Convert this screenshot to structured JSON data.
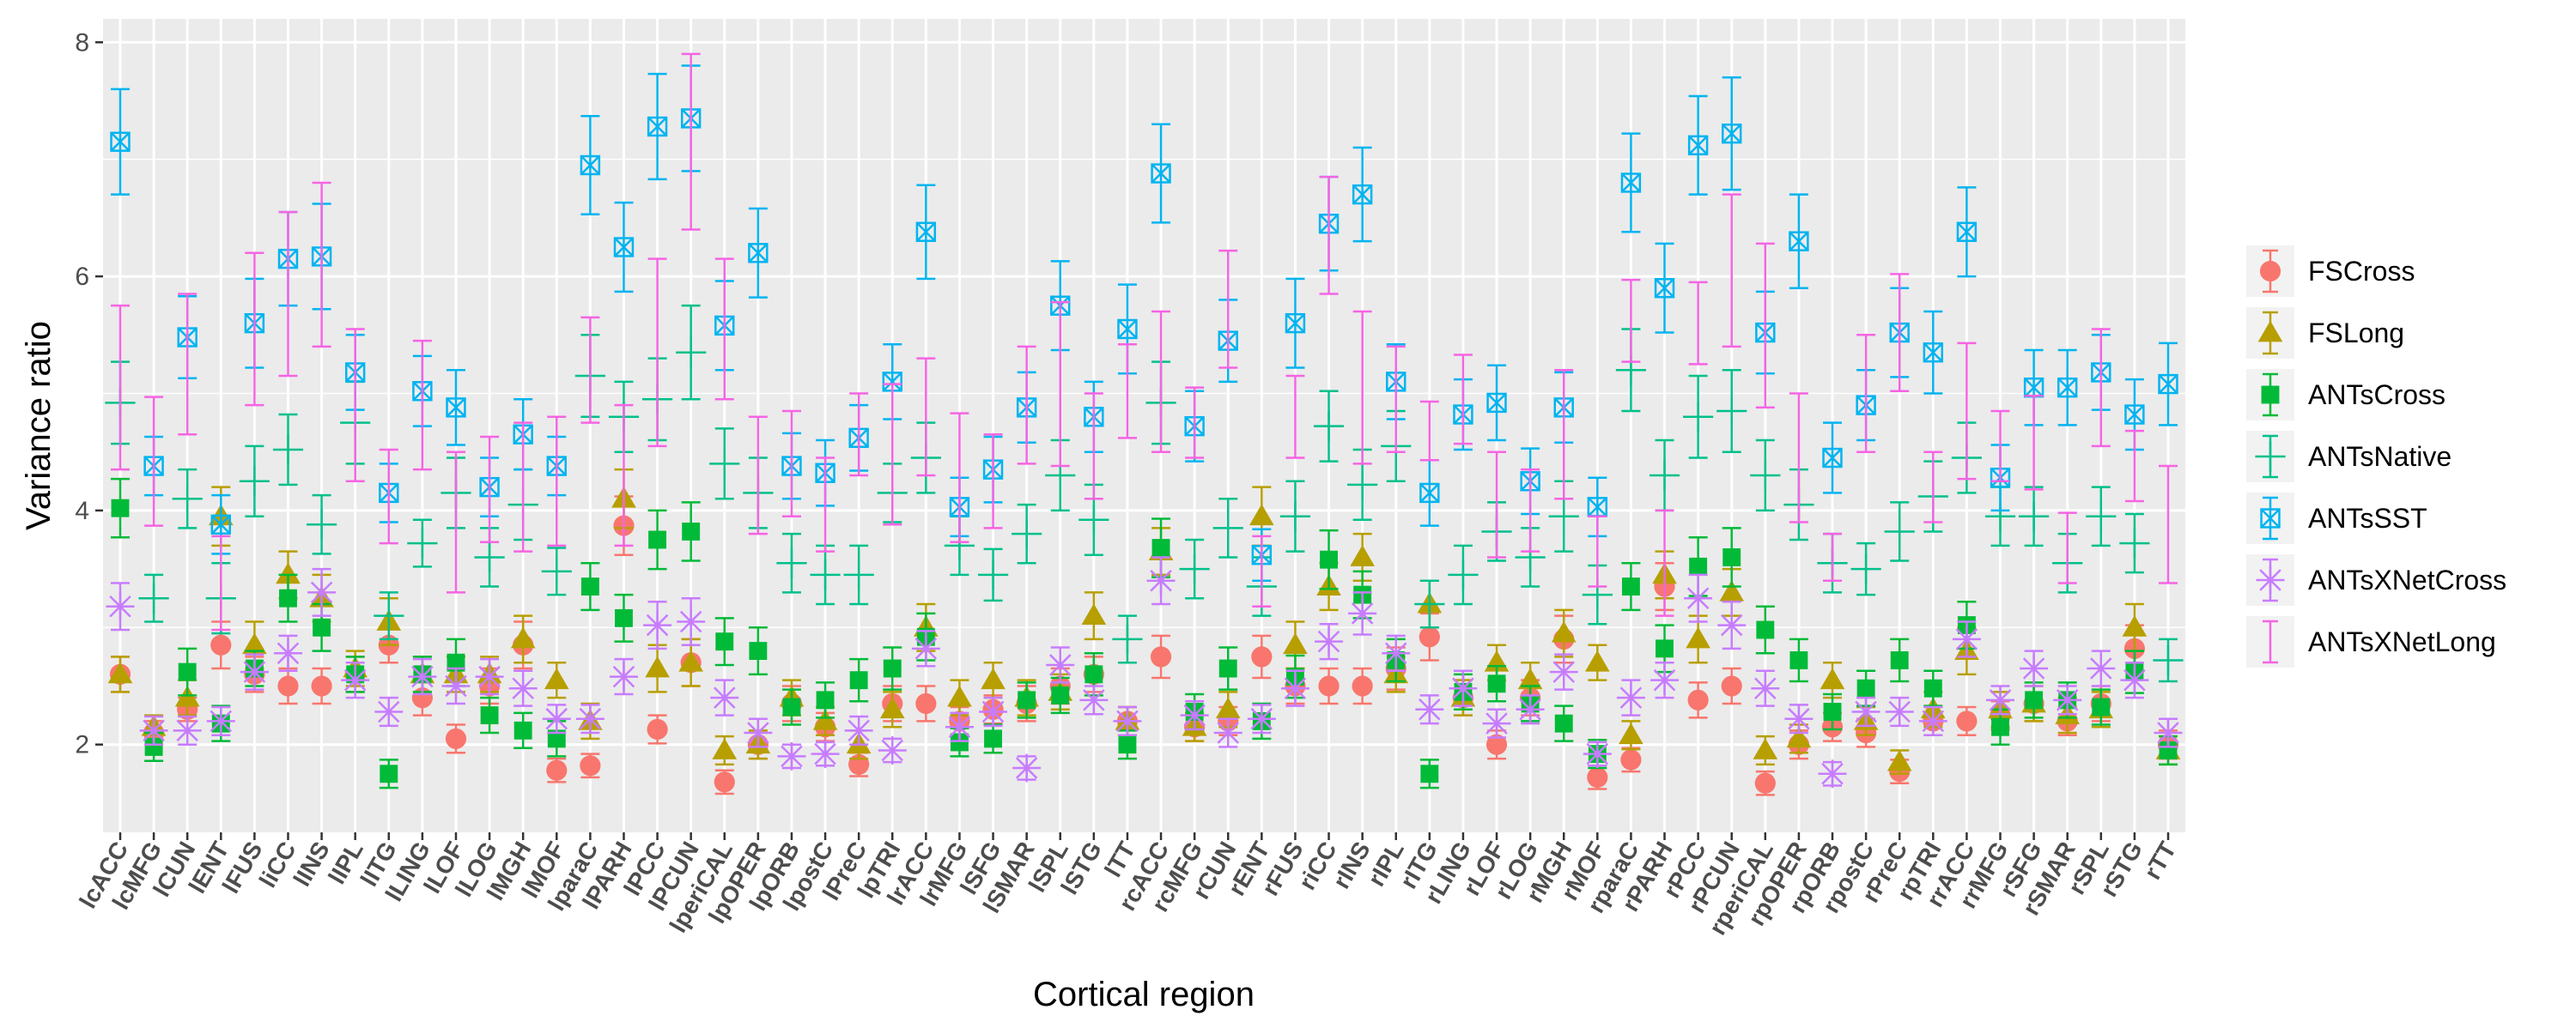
{
  "chart_data": {
    "type": "scatter",
    "xlabel": "Cortical region",
    "ylabel": "Variance ratio",
    "ylim": [
      1.25,
      8.2
    ],
    "yticks": [
      2,
      4,
      6,
      8
    ],
    "grid": true,
    "legend_position": "right",
    "categories": [
      "lcACC",
      "lcMFG",
      "lCUN",
      "lENT",
      "lFUS",
      "liCC",
      "lINS",
      "lIPL",
      "lITG",
      "lLING",
      "lLOF",
      "lLOG",
      "lMGH",
      "lMOF",
      "lparaC",
      "lPARH",
      "lPCC",
      "lPCUN",
      "lperiCAL",
      "lpOPER",
      "lpORB",
      "lpostC",
      "lPreC",
      "lpTRI",
      "lrACC",
      "lrMFG",
      "lSFG",
      "lSMAR",
      "lSPL",
      "lSTG",
      "lTT",
      "rcACC",
      "rcMFG",
      "rCUN",
      "rENT",
      "rFUS",
      "riCC",
      "rINS",
      "rIPL",
      "rITG",
      "rLING",
      "rLOF",
      "rLOG",
      "rMGH",
      "rMOF",
      "rparaC",
      "rPARH",
      "rPCC",
      "rPCUN",
      "rperiCAL",
      "rpOPER",
      "rpORB",
      "rpostC",
      "rPreC",
      "rpTRI",
      "rrACC",
      "rrMFG",
      "rSFG",
      "rSMAR",
      "rSPL",
      "rSTG",
      "rTT"
    ],
    "series": [
      {
        "name": "FSCross",
        "color": "#F8766D",
        "marker": "circle",
        "values": [
          2.6,
          2.1,
          2.3,
          2.85,
          2.6,
          2.5,
          2.5,
          2.6,
          2.85,
          2.4,
          2.05,
          2.5,
          2.85,
          1.78,
          1.82,
          3.87,
          2.13,
          2.7,
          1.68,
          2.0,
          2.35,
          2.15,
          1.83,
          2.35,
          2.35,
          2.2,
          2.3,
          2.35,
          2.5,
          2.6,
          2.2,
          2.75,
          2.15,
          2.2,
          2.75,
          2.5,
          2.5,
          2.5,
          2.65,
          2.92,
          2.4,
          2.0,
          2.4,
          2.9,
          1.72,
          1.87,
          3.35,
          2.38,
          2.5,
          1.67,
          2.0,
          2.15,
          2.1,
          1.77,
          2.2,
          2.2,
          2.25,
          2.35,
          2.2,
          2.35,
          2.82,
          2.0
        ],
        "errors": [
          0.15,
          0.1,
          0.1,
          0.2,
          0.15,
          0.15,
          0.15,
          0.15,
          0.15,
          0.15,
          0.12,
          0.15,
          0.2,
          0.1,
          0.1,
          0.25,
          0.12,
          0.2,
          0.1,
          0.12,
          0.15,
          0.12,
          0.1,
          0.15,
          0.15,
          0.12,
          0.12,
          0.15,
          0.15,
          0.15,
          0.12,
          0.18,
          0.12,
          0.12,
          0.18,
          0.15,
          0.15,
          0.15,
          0.18,
          0.2,
          0.15,
          0.12,
          0.15,
          0.2,
          0.1,
          0.1,
          0.2,
          0.15,
          0.15,
          0.1,
          0.12,
          0.12,
          0.12,
          0.1,
          0.12,
          0.12,
          0.12,
          0.15,
          0.12,
          0.15,
          0.2,
          0.12
        ]
      },
      {
        "name": "FSLong",
        "color": "#B79F00",
        "marker": "triangle",
        "values": [
          2.6,
          2.15,
          2.4,
          3.95,
          2.85,
          3.45,
          3.25,
          2.65,
          3.05,
          2.6,
          2.6,
          2.6,
          2.9,
          2.55,
          2.2,
          4.1,
          2.65,
          2.7,
          1.95,
          2.0,
          2.4,
          2.2,
          2.0,
          2.3,
          3.0,
          2.4,
          2.55,
          2.4,
          2.45,
          3.1,
          2.2,
          3.65,
          2.15,
          2.3,
          3.95,
          2.85,
          3.35,
          3.6,
          2.6,
          3.2,
          2.4,
          2.7,
          2.55,
          2.95,
          2.7,
          2.08,
          3.45,
          2.9,
          3.3,
          1.95,
          2.05,
          2.55,
          2.2,
          1.85,
          2.3,
          2.8,
          2.3,
          2.35,
          2.25,
          2.3,
          3.0,
          1.95
        ],
        "errors": [
          0.15,
          0.1,
          0.15,
          0.25,
          0.2,
          0.2,
          0.2,
          0.15,
          0.2,
          0.15,
          0.15,
          0.15,
          0.2,
          0.15,
          0.15,
          0.25,
          0.2,
          0.2,
          0.12,
          0.12,
          0.15,
          0.12,
          0.12,
          0.15,
          0.2,
          0.15,
          0.15,
          0.15,
          0.15,
          0.2,
          0.12,
          0.2,
          0.12,
          0.15,
          0.25,
          0.2,
          0.2,
          0.2,
          0.15,
          0.2,
          0.15,
          0.15,
          0.15,
          0.2,
          0.15,
          0.12,
          0.2,
          0.2,
          0.2,
          0.12,
          0.12,
          0.15,
          0.12,
          0.1,
          0.15,
          0.2,
          0.15,
          0.15,
          0.15,
          0.15,
          0.2,
          0.12
        ]
      },
      {
        "name": "ANTsCross",
        "color": "#00BA38",
        "marker": "square",
        "values": [
          4.02,
          1.98,
          2.62,
          2.18,
          2.65,
          3.25,
          3.0,
          2.6,
          1.75,
          2.6,
          2.7,
          2.25,
          2.12,
          2.05,
          3.35,
          3.08,
          3.75,
          3.82,
          2.88,
          2.8,
          2.32,
          2.38,
          2.55,
          2.65,
          2.92,
          2.02,
          2.05,
          2.38,
          2.42,
          2.6,
          2.0,
          3.68,
          2.28,
          2.65,
          2.2,
          2.58,
          3.58,
          3.28,
          2.72,
          1.75,
          2.45,
          2.52,
          2.35,
          2.18,
          1.92,
          3.35,
          2.82,
          3.52,
          3.6,
          2.98,
          2.72,
          2.28,
          2.48,
          2.72,
          2.48,
          3.02,
          2.15,
          2.38,
          2.38,
          2.32,
          2.62,
          1.95
        ],
        "errors": [
          0.25,
          0.12,
          0.2,
          0.15,
          0.15,
          0.2,
          0.2,
          0.15,
          0.12,
          0.15,
          0.2,
          0.15,
          0.15,
          0.15,
          0.2,
          0.2,
          0.25,
          0.25,
          0.2,
          0.2,
          0.15,
          0.15,
          0.18,
          0.18,
          0.2,
          0.12,
          0.12,
          0.15,
          0.15,
          0.18,
          0.12,
          0.25,
          0.15,
          0.18,
          0.15,
          0.18,
          0.25,
          0.2,
          0.18,
          0.12,
          0.15,
          0.15,
          0.15,
          0.15,
          0.12,
          0.2,
          0.2,
          0.25,
          0.25,
          0.2,
          0.18,
          0.15,
          0.15,
          0.18,
          0.15,
          0.2,
          0.15,
          0.15,
          0.15,
          0.15,
          0.18,
          0.12
        ]
      },
      {
        "name": "ANTsNative",
        "color": "#00C08B",
        "marker": "plus",
        "values": [
          4.92,
          3.25,
          4.1,
          3.25,
          4.25,
          4.52,
          3.88,
          4.75,
          3.1,
          3.72,
          4.15,
          3.6,
          4.05,
          3.48,
          5.15,
          4.8,
          4.95,
          5.35,
          4.4,
          4.15,
          3.55,
          3.45,
          3.45,
          4.15,
          4.45,
          3.7,
          3.45,
          3.8,
          4.3,
          3.92,
          2.9,
          4.92,
          3.5,
          3.85,
          3.35,
          3.95,
          4.72,
          4.22,
          4.55,
          3.2,
          3.45,
          3.82,
          3.6,
          3.95,
          3.28,
          5.2,
          4.3,
          4.8,
          4.85,
          4.3,
          4.05,
          3.55,
          3.5,
          3.82,
          4.12,
          4.45,
          3.95,
          3.95,
          3.55,
          3.95,
          3.72,
          2.72
        ],
        "errors": [
          0.35,
          0.2,
          0.25,
          0.3,
          0.3,
          0.3,
          0.25,
          0.35,
          0.2,
          0.2,
          0.3,
          0.25,
          0.3,
          0.2,
          0.35,
          0.3,
          0.35,
          0.4,
          0.3,
          0.3,
          0.25,
          0.25,
          0.25,
          0.25,
          0.3,
          0.25,
          0.22,
          0.25,
          0.3,
          0.3,
          0.2,
          0.35,
          0.25,
          0.25,
          0.25,
          0.3,
          0.3,
          0.3,
          0.3,
          0.2,
          0.25,
          0.25,
          0.25,
          0.3,
          0.25,
          0.35,
          0.3,
          0.35,
          0.35,
          0.3,
          0.3,
          0.25,
          0.22,
          0.25,
          0.3,
          0.3,
          0.25,
          0.25,
          0.25,
          0.25,
          0.25,
          0.18
        ]
      },
      {
        "name": "ANTsSST",
        "color": "#00B4F0",
        "marker": "boxcross",
        "values": [
          7.15,
          4.38,
          5.48,
          3.88,
          5.6,
          6.15,
          6.17,
          5.18,
          4.15,
          5.02,
          4.88,
          4.2,
          4.65,
          4.38,
          6.95,
          6.25,
          7.28,
          7.35,
          5.58,
          6.2,
          4.38,
          4.32,
          4.62,
          5.1,
          6.38,
          4.03,
          4.35,
          4.88,
          5.75,
          4.8,
          5.55,
          6.88,
          4.72,
          5.45,
          3.62,
          5.6,
          6.45,
          6.7,
          5.1,
          4.15,
          4.82,
          4.92,
          4.25,
          4.88,
          4.03,
          6.8,
          5.9,
          7.12,
          7.22,
          5.52,
          6.3,
          4.45,
          4.9,
          5.52,
          5.35,
          6.38,
          4.28,
          5.05,
          5.05,
          5.18,
          4.82,
          5.08
        ],
        "errors": [
          0.45,
          0.25,
          0.35,
          0.25,
          0.38,
          0.4,
          0.45,
          0.32,
          0.25,
          0.3,
          0.32,
          0.25,
          0.3,
          0.25,
          0.42,
          0.38,
          0.45,
          0.45,
          0.38,
          0.38,
          0.28,
          0.28,
          0.28,
          0.32,
          0.4,
          0.25,
          0.28,
          0.3,
          0.38,
          0.3,
          0.38,
          0.42,
          0.3,
          0.35,
          0.22,
          0.38,
          0.4,
          0.4,
          0.32,
          0.28,
          0.3,
          0.32,
          0.28,
          0.3,
          0.25,
          0.42,
          0.38,
          0.42,
          0.48,
          0.35,
          0.4,
          0.3,
          0.3,
          0.38,
          0.35,
          0.38,
          0.28,
          0.32,
          0.32,
          0.32,
          0.3,
          0.35
        ]
      },
      {
        "name": "ANTsXNetCross",
        "color": "#C77CFF",
        "marker": "star",
        "values": [
          3.18,
          2.12,
          2.12,
          2.2,
          2.62,
          2.78,
          3.3,
          2.55,
          2.28,
          2.58,
          2.5,
          2.58,
          2.48,
          2.22,
          2.22,
          2.58,
          3.02,
          3.05,
          2.4,
          2.1,
          1.9,
          1.92,
          2.12,
          1.95,
          2.82,
          2.15,
          2.28,
          1.8,
          2.68,
          2.38,
          2.2,
          3.4,
          2.25,
          2.1,
          2.22,
          2.48,
          2.88,
          3.12,
          2.78,
          2.3,
          2.48,
          2.18,
          2.3,
          2.62,
          1.92,
          2.4,
          2.55,
          3.25,
          3.02,
          2.48,
          2.22,
          1.75,
          2.28,
          2.28,
          2.2,
          2.9,
          2.38,
          2.65,
          2.38,
          2.65,
          2.55,
          2.1
        ],
        "errors": [
          0.2,
          0.12,
          0.12,
          0.12,
          0.15,
          0.15,
          0.2,
          0.15,
          0.12,
          0.15,
          0.15,
          0.15,
          0.15,
          0.12,
          0.12,
          0.15,
          0.2,
          0.2,
          0.15,
          0.12,
          0.1,
          0.1,
          0.12,
          0.1,
          0.15,
          0.12,
          0.12,
          0.1,
          0.15,
          0.12,
          0.12,
          0.2,
          0.12,
          0.12,
          0.12,
          0.15,
          0.15,
          0.18,
          0.15,
          0.12,
          0.15,
          0.12,
          0.12,
          0.15,
          0.1,
          0.15,
          0.15,
          0.2,
          0.2,
          0.15,
          0.12,
          0.1,
          0.12,
          0.12,
          0.12,
          0.15,
          0.12,
          0.15,
          0.12,
          0.15,
          0.15,
          0.12
        ]
      },
      {
        "name": "ANTsXNetLong",
        "color": "#F564E3",
        "marker": "dash",
        "values": [
          5.05,
          4.42,
          5.25,
          3.38,
          5.55,
          5.85,
          6.1,
          4.9,
          4.12,
          4.9,
          3.9,
          4.18,
          4.2,
          4.25,
          5.2,
          4.3,
          5.35,
          7.15,
          5.55,
          4.3,
          4.4,
          4.05,
          4.65,
          4.48,
          4.8,
          4.28,
          4.25,
          4.9,
          5.08,
          4.55,
          5.02,
          5.1,
          4.75,
          5.72,
          3.48,
          4.8,
          6.35,
          5.05,
          4.95,
          4.68,
          4.95,
          4.05,
          4.0,
          4.65,
          3.65,
          5.62,
          3.55,
          5.6,
          6.05,
          5.58,
          4.45,
          3.6,
          5.0,
          5.52,
          4.2,
          4.85,
          4.55,
          4.58,
          3.68,
          5.05,
          4.38,
          3.88
        ],
        "errors": [
          0.7,
          0.55,
          0.6,
          0.4,
          0.65,
          0.7,
          0.7,
          0.65,
          0.4,
          0.55,
          0.6,
          0.45,
          0.55,
          0.55,
          0.45,
          0.6,
          0.8,
          0.75,
          0.6,
          0.5,
          0.45,
          0.4,
          0.35,
          0.6,
          0.5,
          0.55,
          0.4,
          0.5,
          0.7,
          0.45,
          0.4,
          0.6,
          0.3,
          0.5,
          0.3,
          0.35,
          0.5,
          0.65,
          0.45,
          0.25,
          0.38,
          0.45,
          0.35,
          0.55,
          0.3,
          0.35,
          0.45,
          0.35,
          0.65,
          0.7,
          0.55,
          0.2,
          0.5,
          0.5,
          0.3,
          0.58,
          0.3,
          0.4,
          0.3,
          0.5,
          0.3,
          0.5
        ]
      }
    ]
  }
}
